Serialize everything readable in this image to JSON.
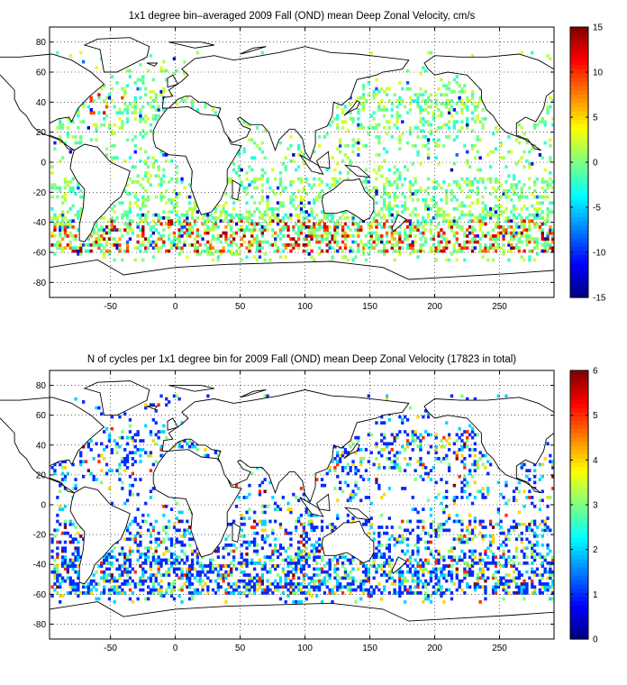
{
  "chart_data": [
    {
      "type": "heatmap",
      "title": "1x1 degree bin–averaged 2009 Fall (OND) mean Deep Zonal Velocity, cm/s",
      "xlim": [
        -97,
        292
      ],
      "ylim": [
        -90,
        90
      ],
      "xticks": [
        -50,
        0,
        50,
        100,
        150,
        200,
        250
      ],
      "yticks": [
        80,
        60,
        40,
        20,
        0,
        -20,
        -40,
        -60,
        -80
      ],
      "grid": true,
      "colorbar": {
        "min": -15,
        "max": 15,
        "ticks": [
          15,
          10,
          5,
          0,
          -5,
          -10,
          -15
        ],
        "colormap": "jet"
      },
      "value_mode": "velocity"
    },
    {
      "type": "heatmap",
      "title": "N of cycles per 1x1 degree bin for 2009 Fall (OND) mean Deep Zonal Velocity (17823 in total)",
      "xlim": [
        -97,
        292
      ],
      "ylim": [
        -90,
        90
      ],
      "xticks": [
        -50,
        0,
        50,
        100,
        150,
        200,
        250
      ],
      "yticks": [
        80,
        60,
        40,
        20,
        0,
        -20,
        -40,
        -60,
        -80
      ],
      "grid": true,
      "colorbar": {
        "min": 0,
        "max": 6,
        "ticks": [
          6,
          5,
          4,
          3,
          2,
          1,
          0
        ],
        "colormap": "jet"
      },
      "value_mode": "count"
    }
  ]
}
